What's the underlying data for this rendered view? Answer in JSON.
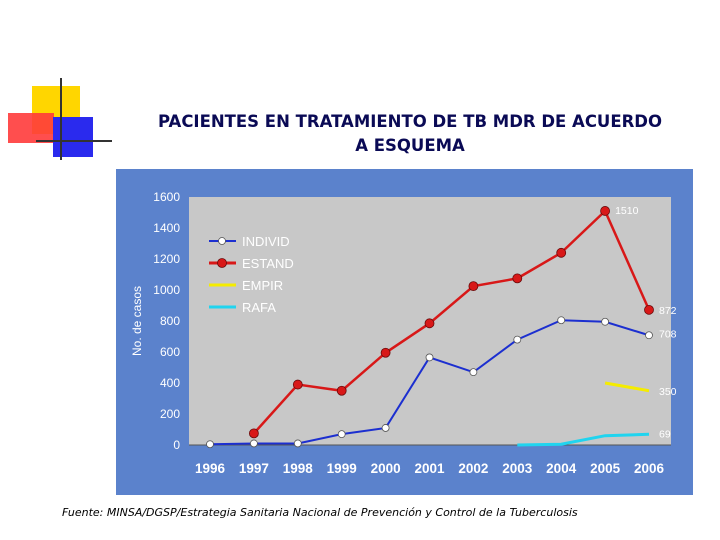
{
  "title_line1": "PACIENTES EN TRATAMIENTO DE TB MDR DE ACUERDO",
  "title_line2": "A ESQUEMA",
  "source": "Fuente: MINSA/DGSP/Estrategia Sanitaria Nacional de Prevención y Control de la Tuberculosis",
  "colors": {
    "panel": "#5b82cc",
    "plot": "#c8c8c8",
    "indiv": "#1c2fd0",
    "estand": "#d81818",
    "empir": "#f5ec00",
    "rafa": "#20d4ef",
    "deco_yellow": "#ffd600",
    "deco_red": "#ff3030",
    "deco_blue": "#2a2aee"
  },
  "chart_data": {
    "type": "line",
    "title": "",
    "xlabel": "",
    "ylabel": "No. de casos",
    "ylim": [
      0,
      1600
    ],
    "yticks": [
      0,
      200,
      400,
      600,
      800,
      1000,
      1200,
      1400,
      1600
    ],
    "categories": [
      "1996",
      "1997",
      "1998",
      "1999",
      "2000",
      "2001",
      "2002",
      "2003",
      "2004",
      "2005",
      "2006"
    ],
    "legend_position": "top-left",
    "grid": false,
    "series": [
      {
        "key": "indiv",
        "name": "INDIVID",
        "marker": "open",
        "values": [
          5,
          10,
          10,
          70,
          110,
          565,
          470,
          680,
          805,
          795,
          708
        ]
      },
      {
        "key": "estand",
        "name": "ESTAND",
        "marker": "filled",
        "values": [
          null,
          75,
          390,
          350,
          595,
          785,
          1025,
          1075,
          1240,
          1510,
          872
        ]
      },
      {
        "key": "empir",
        "name": "EMPIR",
        "marker": "none",
        "values": [
          null,
          null,
          null,
          null,
          null,
          null,
          null,
          null,
          null,
          400,
          350
        ]
      },
      {
        "key": "rafa",
        "name": "RAFA",
        "marker": "none",
        "values": [
          null,
          null,
          null,
          null,
          null,
          null,
          null,
          0,
          5,
          60,
          69
        ]
      }
    ],
    "data_labels": [
      {
        "series": "estand",
        "index": 9,
        "text": "1510"
      },
      {
        "series": "estand",
        "index": 10,
        "text": "872"
      },
      {
        "series": "indiv",
        "index": 10,
        "text": "708"
      },
      {
        "series": "empir",
        "index": 10,
        "text": "350"
      },
      {
        "series": "rafa",
        "index": 10,
        "text": "69"
      }
    ]
  }
}
